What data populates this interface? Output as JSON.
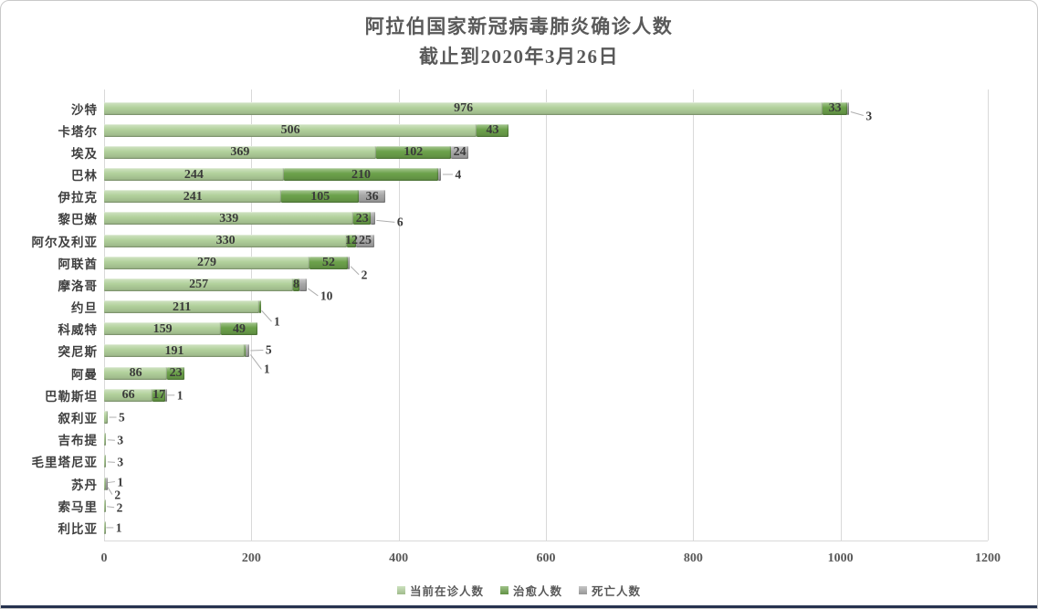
{
  "title": {
    "line1": "阿拉伯国家新冠病毒肺炎确诊人数",
    "line2": "截止到2020年3月26日"
  },
  "chart_data": {
    "type": "bar",
    "orientation": "horizontal",
    "stacked": true,
    "title": "阿拉伯国家新冠病毒肺炎确诊人数",
    "subtitle": "截止到2020年3月26日",
    "categories": [
      "沙特",
      "卡塔尔",
      "埃及",
      "巴林",
      "伊拉克",
      "黎巴嫩",
      "阿尔及利亚",
      "阿联酋",
      "摩洛哥",
      "约旦",
      "科威特",
      "突尼斯",
      "阿曼",
      "巴勒斯坦",
      "叙利亚",
      "吉布提",
      "毛里塔尼亚",
      "苏丹",
      "索马里",
      "利比亚"
    ],
    "series": [
      {
        "name": "当前在诊人数",
        "color": "#b2d19c",
        "values": [
          976,
          506,
          369,
          244,
          241,
          339,
          330,
          279,
          257,
          211,
          159,
          191,
          86,
          66,
          5,
          3,
          3,
          2,
          2,
          1
        ]
      },
      {
        "name": "治愈人数",
        "color": "#6ca24b",
        "values": [
          33,
          43,
          102,
          210,
          105,
          23,
          12,
          52,
          8,
          1,
          49,
          1,
          23,
          17,
          0,
          0,
          0,
          0,
          0,
          0
        ]
      },
      {
        "name": "死亡人数",
        "color": "#a8a8a8",
        "values": [
          3,
          0,
          24,
          4,
          36,
          6,
          25,
          2,
          10,
          0,
          0,
          5,
          0,
          1,
          0,
          0,
          0,
          1,
          0,
          0
        ]
      }
    ],
    "xlim": [
      0,
      1200
    ],
    "x_ticks": [
      0,
      200,
      400,
      600,
      800,
      1000,
      1200
    ],
    "grid": "vertical",
    "legend_position": "bottom"
  }
}
